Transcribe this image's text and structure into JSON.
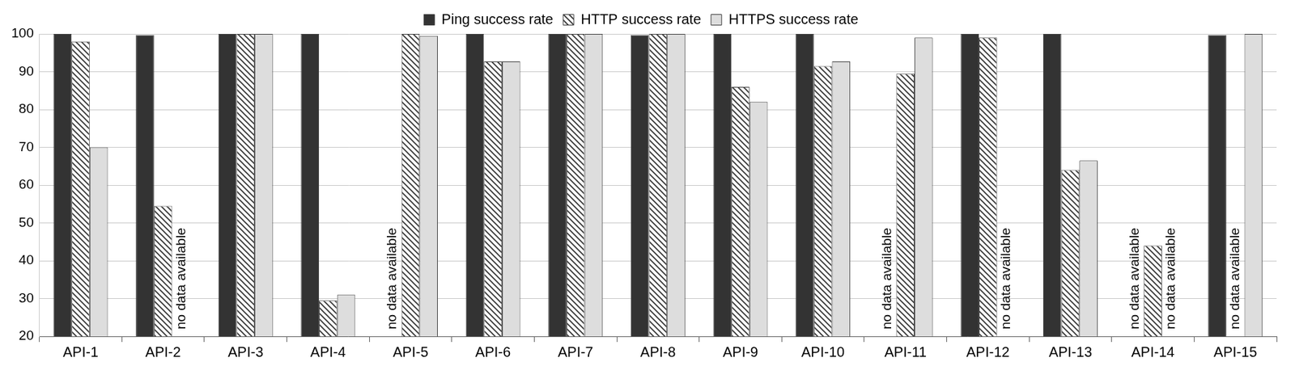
{
  "chart_data": {
    "type": "bar",
    "categories": [
      "API-1",
      "API-2",
      "API-3",
      "API-4",
      "API-5",
      "API-6",
      "API-7",
      "API-8",
      "API-9",
      "API-10",
      "API-11",
      "API-12",
      "API-13",
      "API-14",
      "API-15"
    ],
    "series": [
      {
        "name": "Ping success rate",
        "color": "#333333",
        "values": [
          100,
          99.7,
          100,
          100,
          null,
          100,
          100,
          99.7,
          100,
          100,
          null,
          100,
          100,
          null,
          99.7
        ]
      },
      {
        "name": "HTTP success rate",
        "color": "#333333",
        "marker": "hatch",
        "values": [
          98,
          54.5,
          100,
          29.5,
          100,
          92.7,
          100,
          100,
          86,
          91.5,
          89.5,
          99,
          64,
          44,
          null
        ]
      },
      {
        "name": "HTTPS success rate",
        "color": "#dddddd",
        "values": [
          70,
          null,
          100,
          31,
          99.5,
          92.7,
          100,
          100,
          82,
          92.7,
          99,
          null,
          66.5,
          null,
          100
        ]
      }
    ],
    "annotations": [
      {
        "category": "API-2",
        "series": "HTTPS success rate",
        "text": "no data available"
      },
      {
        "category": "API-5",
        "series": "Ping success rate",
        "text": "no data available"
      },
      {
        "category": "API-11",
        "series": "Ping success rate",
        "text": "no data available"
      },
      {
        "category": "API-12",
        "series": "HTTPS success rate",
        "text": "no data available"
      },
      {
        "category": "API-14",
        "series": "Ping success rate",
        "text": "no data available"
      },
      {
        "category": "API-14",
        "series": "HTTPS success rate",
        "text": "no data available"
      },
      {
        "category": "API-15",
        "series": "HTTP success rate",
        "text": "no data available"
      }
    ],
    "ylim": [
      20,
      100
    ],
    "yticks": [
      20,
      30,
      40,
      50,
      60,
      70,
      80,
      90,
      100
    ],
    "grid": true,
    "legend": "top"
  }
}
